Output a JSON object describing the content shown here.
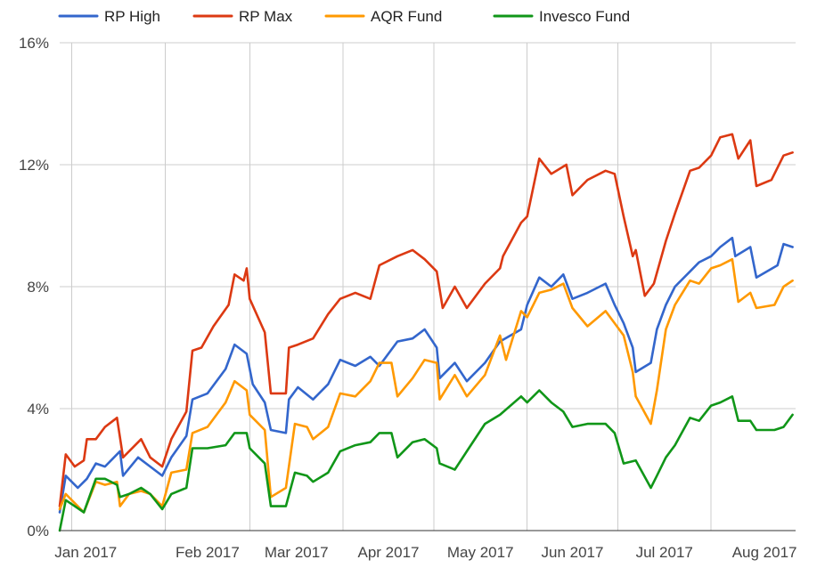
{
  "chart_data": {
    "type": "line",
    "title": "",
    "xlabel": "",
    "ylabel": "",
    "ylim": [
      0,
      16
    ],
    "y_ticks": [
      0,
      4,
      8,
      12,
      16
    ],
    "y_tick_labels": [
      "0%",
      "4%",
      "8%",
      "12%",
      "16%"
    ],
    "y_unit": "%",
    "x_range": [
      "2016-12-28",
      "2017-08-29"
    ],
    "x_tick_labels": [
      "Jan 2017",
      "Feb 2017",
      "Mar 2017",
      "Apr 2017",
      "May 2017",
      "Jun 2017",
      "Jul 2017",
      "Aug 2017"
    ],
    "x_ticks": [
      "2017-01-01",
      "2017-02-01",
      "2017-03-01",
      "2017-04-01",
      "2017-05-01",
      "2017-06-01",
      "2017-07-01",
      "2017-08-01"
    ],
    "grid": "vertical at month starts, horizontal at y ticks",
    "legend_position": "top",
    "series": [
      {
        "name": "RP High",
        "color": "#3366cc",
        "points": [
          [
            "2016-12-28",
            0.6
          ],
          [
            "2016-12-30",
            1.8
          ],
          [
            "2017-01-03",
            1.4
          ],
          [
            "2017-01-06",
            1.7
          ],
          [
            "2017-01-09",
            2.2
          ],
          [
            "2017-01-12",
            2.1
          ],
          [
            "2017-01-17",
            2.6
          ],
          [
            "2017-01-18",
            1.8
          ],
          [
            "2017-01-23",
            2.4
          ],
          [
            "2017-01-27",
            2.1
          ],
          [
            "2017-01-31",
            1.8
          ],
          [
            "2017-02-03",
            2.4
          ],
          [
            "2017-02-08",
            3.1
          ],
          [
            "2017-02-10",
            4.3
          ],
          [
            "2017-02-15",
            4.5
          ],
          [
            "2017-02-21",
            5.3
          ],
          [
            "2017-02-24",
            6.1
          ],
          [
            "2017-02-28",
            5.8
          ],
          [
            "2017-03-02",
            4.8
          ],
          [
            "2017-03-06",
            4.2
          ],
          [
            "2017-03-08",
            3.3
          ],
          [
            "2017-03-13",
            3.2
          ],
          [
            "2017-03-14",
            4.3
          ],
          [
            "2017-03-17",
            4.7
          ],
          [
            "2017-03-22",
            4.3
          ],
          [
            "2017-03-27",
            4.8
          ],
          [
            "2017-03-31",
            5.6
          ],
          [
            "2017-04-05",
            5.4
          ],
          [
            "2017-04-10",
            5.7
          ],
          [
            "2017-04-13",
            5.4
          ],
          [
            "2017-04-19",
            6.2
          ],
          [
            "2017-04-24",
            6.3
          ],
          [
            "2017-04-28",
            6.6
          ],
          [
            "2017-05-02",
            6.0
          ],
          [
            "2017-05-03",
            5.0
          ],
          [
            "2017-05-08",
            5.5
          ],
          [
            "2017-05-12",
            4.9
          ],
          [
            "2017-05-18",
            5.5
          ],
          [
            "2017-05-23",
            6.2
          ],
          [
            "2017-05-30",
            6.6
          ],
          [
            "2017-06-01",
            7.4
          ],
          [
            "2017-06-05",
            8.3
          ],
          [
            "2017-06-09",
            8.0
          ],
          [
            "2017-06-13",
            8.4
          ],
          [
            "2017-06-16",
            7.6
          ],
          [
            "2017-06-21",
            7.8
          ],
          [
            "2017-06-27",
            8.1
          ],
          [
            "2017-06-30",
            7.4
          ],
          [
            "2017-07-03",
            6.8
          ],
          [
            "2017-07-06",
            6.0
          ],
          [
            "2017-07-07",
            5.2
          ],
          [
            "2017-07-12",
            5.5
          ],
          [
            "2017-07-14",
            6.6
          ],
          [
            "2017-07-17",
            7.4
          ],
          [
            "2017-07-20",
            8.0
          ],
          [
            "2017-07-25",
            8.5
          ],
          [
            "2017-07-28",
            8.8
          ],
          [
            "2017-08-01",
            9.0
          ],
          [
            "2017-08-04",
            9.3
          ],
          [
            "2017-08-08",
            9.6
          ],
          [
            "2017-08-09",
            9.0
          ],
          [
            "2017-08-14",
            9.3
          ],
          [
            "2017-08-16",
            8.3
          ],
          [
            "2017-08-23",
            8.7
          ],
          [
            "2017-08-25",
            9.4
          ],
          [
            "2017-08-28",
            9.3
          ]
        ]
      },
      {
        "name": "RP Max",
        "color": "#dc3912",
        "points": [
          [
            "2016-12-28",
            0.8
          ],
          [
            "2016-12-30",
            2.5
          ],
          [
            "2017-01-02",
            2.1
          ],
          [
            "2017-01-05",
            2.3
          ],
          [
            "2017-01-06",
            3.0
          ],
          [
            "2017-01-09",
            3.0
          ],
          [
            "2017-01-12",
            3.4
          ],
          [
            "2017-01-16",
            3.7
          ],
          [
            "2017-01-18",
            2.4
          ],
          [
            "2017-01-24",
            3.0
          ],
          [
            "2017-01-27",
            2.4
          ],
          [
            "2017-01-31",
            2.1
          ],
          [
            "2017-02-03",
            3.0
          ],
          [
            "2017-02-08",
            3.9
          ],
          [
            "2017-02-10",
            5.9
          ],
          [
            "2017-02-13",
            6.0
          ],
          [
            "2017-02-17",
            6.7
          ],
          [
            "2017-02-22",
            7.4
          ],
          [
            "2017-02-24",
            8.4
          ],
          [
            "2017-02-27",
            8.2
          ],
          [
            "2017-02-28",
            8.6
          ],
          [
            "2017-03-01",
            7.6
          ],
          [
            "2017-03-06",
            6.5
          ],
          [
            "2017-03-08",
            4.5
          ],
          [
            "2017-03-13",
            4.5
          ],
          [
            "2017-03-14",
            6.0
          ],
          [
            "2017-03-17",
            6.1
          ],
          [
            "2017-03-22",
            6.3
          ],
          [
            "2017-03-27",
            7.1
          ],
          [
            "2017-03-31",
            7.6
          ],
          [
            "2017-04-05",
            7.8
          ],
          [
            "2017-04-10",
            7.6
          ],
          [
            "2017-04-13",
            8.7
          ],
          [
            "2017-04-19",
            9.0
          ],
          [
            "2017-04-24",
            9.2
          ],
          [
            "2017-04-28",
            8.9
          ],
          [
            "2017-05-02",
            8.5
          ],
          [
            "2017-05-04",
            7.3
          ],
          [
            "2017-05-08",
            8.0
          ],
          [
            "2017-05-12",
            7.3
          ],
          [
            "2017-05-18",
            8.1
          ],
          [
            "2017-05-23",
            8.6
          ],
          [
            "2017-05-24",
            9.0
          ],
          [
            "2017-05-30",
            10.1
          ],
          [
            "2017-06-01",
            10.3
          ],
          [
            "2017-06-05",
            12.2
          ],
          [
            "2017-06-09",
            11.7
          ],
          [
            "2017-06-14",
            12.0
          ],
          [
            "2017-06-16",
            11.0
          ],
          [
            "2017-06-21",
            11.5
          ],
          [
            "2017-06-27",
            11.8
          ],
          [
            "2017-06-30",
            11.7
          ],
          [
            "2017-07-03",
            10.3
          ],
          [
            "2017-07-06",
            9.0
          ],
          [
            "2017-07-07",
            9.2
          ],
          [
            "2017-07-10",
            7.7
          ],
          [
            "2017-07-13",
            8.1
          ],
          [
            "2017-07-17",
            9.5
          ],
          [
            "2017-07-20",
            10.4
          ],
          [
            "2017-07-25",
            11.8
          ],
          [
            "2017-07-28",
            11.9
          ],
          [
            "2017-08-01",
            12.3
          ],
          [
            "2017-08-04",
            12.9
          ],
          [
            "2017-08-08",
            13.0
          ],
          [
            "2017-08-10",
            12.2
          ],
          [
            "2017-08-14",
            12.8
          ],
          [
            "2017-08-16",
            11.3
          ],
          [
            "2017-08-21",
            11.5
          ],
          [
            "2017-08-25",
            12.3
          ],
          [
            "2017-08-28",
            12.4
          ]
        ]
      },
      {
        "name": "AQR Fund",
        "color": "#ff9900",
        "points": [
          [
            "2016-12-28",
            0.7
          ],
          [
            "2016-12-30",
            1.2
          ],
          [
            "2017-01-02",
            0.9
          ],
          [
            "2017-01-05",
            0.6
          ],
          [
            "2017-01-09",
            1.6
          ],
          [
            "2017-01-12",
            1.5
          ],
          [
            "2017-01-16",
            1.6
          ],
          [
            "2017-01-17",
            0.8
          ],
          [
            "2017-01-20",
            1.2
          ],
          [
            "2017-01-24",
            1.3
          ],
          [
            "2017-01-27",
            1.2
          ],
          [
            "2017-01-31",
            0.8
          ],
          [
            "2017-02-03",
            1.9
          ],
          [
            "2017-02-08",
            2.0
          ],
          [
            "2017-02-10",
            3.2
          ],
          [
            "2017-02-15",
            3.4
          ],
          [
            "2017-02-21",
            4.2
          ],
          [
            "2017-02-24",
            4.9
          ],
          [
            "2017-02-28",
            4.6
          ],
          [
            "2017-03-01",
            3.8
          ],
          [
            "2017-03-06",
            3.3
          ],
          [
            "2017-03-08",
            1.1
          ],
          [
            "2017-03-13",
            1.4
          ],
          [
            "2017-03-16",
            3.5
          ],
          [
            "2017-03-20",
            3.4
          ],
          [
            "2017-03-22",
            3.0
          ],
          [
            "2017-03-27",
            3.4
          ],
          [
            "2017-03-31",
            4.5
          ],
          [
            "2017-04-05",
            4.4
          ],
          [
            "2017-04-10",
            4.9
          ],
          [
            "2017-04-13",
            5.5
          ],
          [
            "2017-04-17",
            5.5
          ],
          [
            "2017-04-19",
            4.4
          ],
          [
            "2017-04-24",
            5.0
          ],
          [
            "2017-04-28",
            5.6
          ],
          [
            "2017-05-02",
            5.5
          ],
          [
            "2017-05-03",
            4.3
          ],
          [
            "2017-05-08",
            5.1
          ],
          [
            "2017-05-12",
            4.4
          ],
          [
            "2017-05-18",
            5.1
          ],
          [
            "2017-05-23",
            6.4
          ],
          [
            "2017-05-25",
            5.6
          ],
          [
            "2017-05-30",
            7.2
          ],
          [
            "2017-06-01",
            7.0
          ],
          [
            "2017-06-05",
            7.8
          ],
          [
            "2017-06-09",
            7.9
          ],
          [
            "2017-06-13",
            8.1
          ],
          [
            "2017-06-16",
            7.3
          ],
          [
            "2017-06-21",
            6.7
          ],
          [
            "2017-06-27",
            7.2
          ],
          [
            "2017-06-30",
            6.8
          ],
          [
            "2017-07-03",
            6.4
          ],
          [
            "2017-07-06",
            5.2
          ],
          [
            "2017-07-07",
            4.4
          ],
          [
            "2017-07-12",
            3.5
          ],
          [
            "2017-07-14",
            4.6
          ],
          [
            "2017-07-17",
            6.6
          ],
          [
            "2017-07-20",
            7.4
          ],
          [
            "2017-07-25",
            8.2
          ],
          [
            "2017-07-28",
            8.1
          ],
          [
            "2017-08-01",
            8.6
          ],
          [
            "2017-08-04",
            8.7
          ],
          [
            "2017-08-08",
            8.9
          ],
          [
            "2017-08-10",
            7.5
          ],
          [
            "2017-08-14",
            7.8
          ],
          [
            "2017-08-16",
            7.3
          ],
          [
            "2017-08-22",
            7.4
          ],
          [
            "2017-08-25",
            8.0
          ],
          [
            "2017-08-28",
            8.2
          ]
        ]
      },
      {
        "name": "Invesco Fund",
        "color": "#109618",
        "points": [
          [
            "2016-12-28",
            0.0
          ],
          [
            "2016-12-30",
            1.0
          ],
          [
            "2017-01-02",
            0.8
          ],
          [
            "2017-01-05",
            0.6
          ],
          [
            "2017-01-09",
            1.7
          ],
          [
            "2017-01-12",
            1.7
          ],
          [
            "2017-01-16",
            1.5
          ],
          [
            "2017-01-17",
            1.1
          ],
          [
            "2017-01-20",
            1.2
          ],
          [
            "2017-01-24",
            1.4
          ],
          [
            "2017-01-27",
            1.2
          ],
          [
            "2017-01-31",
            0.7
          ],
          [
            "2017-02-03",
            1.2
          ],
          [
            "2017-02-08",
            1.4
          ],
          [
            "2017-02-10",
            2.7
          ],
          [
            "2017-02-15",
            2.7
          ],
          [
            "2017-02-21",
            2.8
          ],
          [
            "2017-02-24",
            3.2
          ],
          [
            "2017-02-28",
            3.2
          ],
          [
            "2017-03-01",
            2.7
          ],
          [
            "2017-03-06",
            2.2
          ],
          [
            "2017-03-08",
            0.8
          ],
          [
            "2017-03-13",
            0.8
          ],
          [
            "2017-03-16",
            1.9
          ],
          [
            "2017-03-20",
            1.8
          ],
          [
            "2017-03-22",
            1.6
          ],
          [
            "2017-03-27",
            1.9
          ],
          [
            "2017-03-31",
            2.6
          ],
          [
            "2017-04-05",
            2.8
          ],
          [
            "2017-04-10",
            2.9
          ],
          [
            "2017-04-13",
            3.2
          ],
          [
            "2017-04-17",
            3.2
          ],
          [
            "2017-04-19",
            2.4
          ],
          [
            "2017-04-24",
            2.9
          ],
          [
            "2017-04-28",
            3.0
          ],
          [
            "2017-05-02",
            2.7
          ],
          [
            "2017-05-03",
            2.2
          ],
          [
            "2017-05-08",
            2.0
          ],
          [
            "2017-05-12",
            2.6
          ],
          [
            "2017-05-18",
            3.5
          ],
          [
            "2017-05-23",
            3.8
          ],
          [
            "2017-05-30",
            4.4
          ],
          [
            "2017-06-01",
            4.2
          ],
          [
            "2017-06-05",
            4.6
          ],
          [
            "2017-06-09",
            4.2
          ],
          [
            "2017-06-13",
            3.9
          ],
          [
            "2017-06-16",
            3.4
          ],
          [
            "2017-06-21",
            3.5
          ],
          [
            "2017-06-27",
            3.5
          ],
          [
            "2017-06-30",
            3.2
          ],
          [
            "2017-07-03",
            2.2
          ],
          [
            "2017-07-07",
            2.3
          ],
          [
            "2017-07-12",
            1.4
          ],
          [
            "2017-07-14",
            1.8
          ],
          [
            "2017-07-17",
            2.4
          ],
          [
            "2017-07-20",
            2.8
          ],
          [
            "2017-07-25",
            3.7
          ],
          [
            "2017-07-28",
            3.6
          ],
          [
            "2017-08-01",
            4.1
          ],
          [
            "2017-08-04",
            4.2
          ],
          [
            "2017-08-08",
            4.4
          ],
          [
            "2017-08-10",
            3.6
          ],
          [
            "2017-08-14",
            3.6
          ],
          [
            "2017-08-16",
            3.3
          ],
          [
            "2017-08-22",
            3.3
          ],
          [
            "2017-08-25",
            3.4
          ],
          [
            "2017-08-28",
            3.8
          ]
        ]
      }
    ]
  }
}
